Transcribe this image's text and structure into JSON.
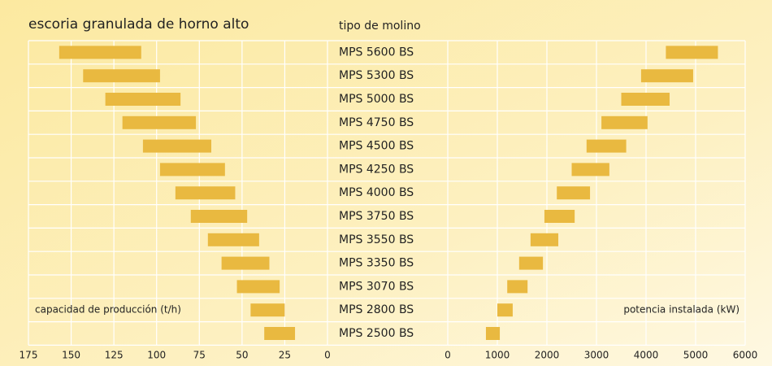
{
  "chart_data": [
    {
      "type": "range-bar",
      "title": "escoria granulada de horno alto",
      "category_label": "tipo de molino",
      "categories": [
        "MPS 5600 BS",
        "MPS 5300 BS",
        "MPS 5000 BS",
        "MPS 4750 BS",
        "MPS 4500 BS",
        "MPS 4250 BS",
        "MPS 4000 BS",
        "MPS 3750 BS",
        "MPS 3550 BS",
        "MPS 3350 BS",
        "MPS 3070 BS",
        "MPS 2800 BS",
        "MPS 2500 BS"
      ],
      "xlabel": "capacidad de producción (t/h)",
      "low": [
        109,
        98,
        86,
        77,
        68,
        60,
        54,
        47,
        40,
        34,
        28,
        25,
        19
      ],
      "high": [
        157,
        143,
        130,
        120,
        108,
        98,
        89,
        80,
        70,
        62,
        53,
        45,
        37
      ],
      "color": "#e9b940",
      "xlim": [
        175,
        0
      ],
      "xticks": [
        175,
        150,
        125,
        100,
        75,
        50,
        25,
        0
      ],
      "grid": true
    },
    {
      "type": "range-bar",
      "xlabel": "potencia instalada (kW)",
      "low": [
        4400,
        3900,
        3500,
        3100,
        2800,
        2500,
        2200,
        1950,
        1670,
        1440,
        1200,
        1000,
        770
      ],
      "high": [
        5450,
        4950,
        4475,
        4030,
        3600,
        3260,
        2870,
        2560,
        2230,
        1920,
        1610,
        1310,
        1050
      ],
      "color": "#e9b940",
      "xlim": [
        0,
        6000
      ],
      "xticks": [
        0,
        1000,
        2000,
        3000,
        4000,
        5000,
        6000
      ],
      "grid": true
    }
  ]
}
